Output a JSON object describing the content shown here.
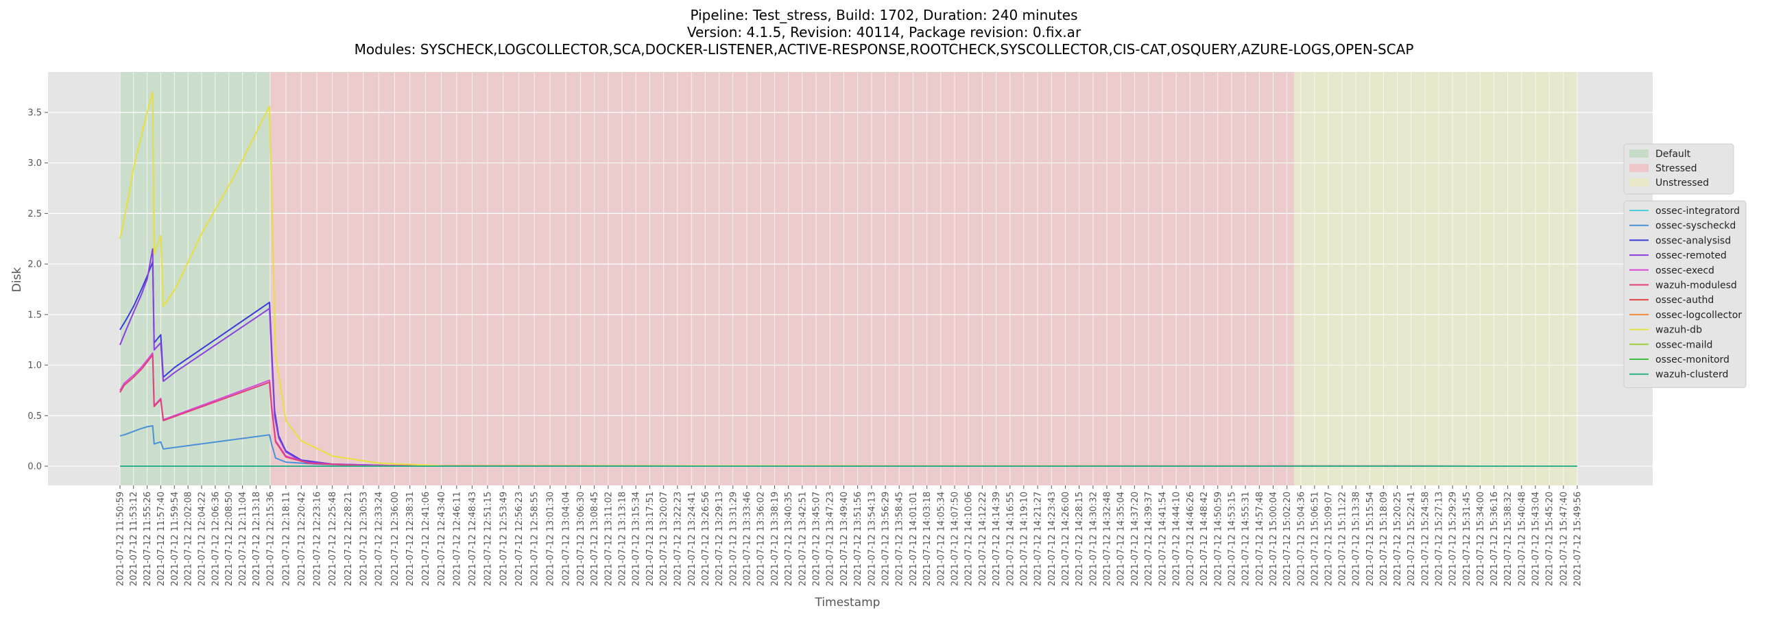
{
  "title_lines": [
    "Pipeline: Test_stress, Build: 1702, Duration: 240 minutes",
    "Version: 4.1.5, Revision: 40114, Package revision: 0.fix.ar",
    "Modules: SYSCHECK,LOGCOLLECTOR,SCA,DOCKER-LISTENER,ACTIVE-RESPONSE,ROOTCHECK,SYSCOLLECTOR,CIS-CAT,OSQUERY,AZURE-LOGS,OPEN-SCAP"
  ],
  "chart_data": {
    "type": "line",
    "xlabel": "Timestamp",
    "ylabel": "Disk",
    "ylim": [
      -0.19,
      3.9
    ],
    "yticks": [
      0.0,
      0.5,
      1.0,
      1.5,
      2.0,
      2.5,
      3.0,
      3.5
    ],
    "ytick_labels": [
      "0.0",
      "0.5",
      "1.0",
      "1.5",
      "2.0",
      "2.5",
      "3.0",
      "3.5"
    ],
    "grid": true,
    "legend_placement": "right",
    "x_ticks": [
      "2021-07-12 11:50:59",
      "2021-07-12 11:53:12",
      "2021-07-12 11:55:26",
      "2021-07-12 11:57:40",
      "2021-07-12 11:59:54",
      "2021-07-12 12:02:08",
      "2021-07-12 12:04:22",
      "2021-07-12 12:06:36",
      "2021-07-12 12:08:50",
      "2021-07-12 12:11:04",
      "2021-07-12 12:13:18",
      "2021-07-12 12:15:36",
      "2021-07-12 12:18:11",
      "2021-07-12 12:20:42",
      "2021-07-12 12:23:16",
      "2021-07-12 12:25:48",
      "2021-07-12 12:28:21",
      "2021-07-12 12:30:53",
      "2021-07-12 12:33:24",
      "2021-07-12 12:36:00",
      "2021-07-12 12:38:31",
      "2021-07-12 12:41:06",
      "2021-07-12 12:43:40",
      "2021-07-12 12:46:11",
      "2021-07-12 12:48:43",
      "2021-07-12 12:51:15",
      "2021-07-12 12:53:49",
      "2021-07-12 12:56:23",
      "2021-07-12 12:58:55",
      "2021-07-12 13:01:30",
      "2021-07-12 13:04:04",
      "2021-07-12 13:06:30",
      "2021-07-12 13:08:45",
      "2021-07-12 13:11:02",
      "2021-07-12 13:13:18",
      "2021-07-12 13:15:34",
      "2021-07-12 13:17:51",
      "2021-07-12 13:20:07",
      "2021-07-12 13:22:23",
      "2021-07-12 13:24:41",
      "2021-07-12 13:26:56",
      "2021-07-12 13:29:13",
      "2021-07-12 13:31:29",
      "2021-07-12 13:33:46",
      "2021-07-12 13:36:02",
      "2021-07-12 13:38:19",
      "2021-07-12 13:40:35",
      "2021-07-12 13:42:51",
      "2021-07-12 13:45:07",
      "2021-07-12 13:47:23",
      "2021-07-12 13:49:40",
      "2021-07-12 13:51:56",
      "2021-07-12 13:54:13",
      "2021-07-12 13:56:29",
      "2021-07-12 13:58:45",
      "2021-07-12 14:01:01",
      "2021-07-12 14:03:18",
      "2021-07-12 14:05:34",
      "2021-07-12 14:07:50",
      "2021-07-12 14:10:06",
      "2021-07-12 14:12:22",
      "2021-07-12 14:14:39",
      "2021-07-12 14:16:55",
      "2021-07-12 14:19:10",
      "2021-07-12 14:21:27",
      "2021-07-12 14:23:43",
      "2021-07-12 14:26:00",
      "2021-07-12 14:28:15",
      "2021-07-12 14:30:32",
      "2021-07-12 14:32:48",
      "2021-07-12 14:35:04",
      "2021-07-12 14:37:20",
      "2021-07-12 14:39:37",
      "2021-07-12 14:41:54",
      "2021-07-12 14:44:10",
      "2021-07-12 14:46:26",
      "2021-07-12 14:48:42",
      "2021-07-12 14:50:59",
      "2021-07-12 14:53:15",
      "2021-07-12 14:55:31",
      "2021-07-12 14:57:48",
      "2021-07-12 15:00:04",
      "2021-07-12 15:02:20",
      "2021-07-12 15:04:36",
      "2021-07-12 15:06:51",
      "2021-07-12 15:09:07",
      "2021-07-12 15:11:22",
      "2021-07-12 15:13:38",
      "2021-07-12 15:15:54",
      "2021-07-12 15:18:09",
      "2021-07-12 15:20:25",
      "2021-07-12 15:22:41",
      "2021-07-12 15:24:58",
      "2021-07-12 15:27:13",
      "2021-07-12 15:29:29",
      "2021-07-12 15:31:45",
      "2021-07-12 15:34:00",
      "2021-07-12 15:36:16",
      "2021-07-12 15:38:32",
      "2021-07-12 15:40:48",
      "2021-07-12 15:43:04",
      "2021-07-12 15:45:20",
      "2021-07-12 15:47:40",
      "2021-07-12 15:49:56"
    ],
    "phases": [
      {
        "name": "Default",
        "start": "2021-07-12 11:50:59",
        "end": "2021-07-12 12:15:36",
        "color": "#b2d5b2"
      },
      {
        "name": "Stressed",
        "start": "2021-07-12 12:15:36",
        "end": "2021-07-12 15:03:28",
        "color": "#f2b2b2"
      },
      {
        "name": "Unstressed",
        "start": "2021-07-12 15:03:28",
        "end": "2021-07-12 15:49:56",
        "color": "#eaeab2"
      }
    ],
    "series": [
      {
        "name": "ossec-integratord",
        "color": "#4dd0d8",
        "x": [
          "2021-07-12 11:50:59",
          "2021-07-12 15:49:56"
        ],
        "y": [
          0.0,
          0.0
        ]
      },
      {
        "name": "ossec-syscheckd",
        "color": "#4a90d9",
        "x": [
          "2021-07-12 11:50:59",
          "2021-07-12 11:51:40",
          "2021-07-12 11:53:00",
          "2021-07-12 11:54:20",
          "2021-07-12 11:55:26",
          "2021-07-12 11:56:20",
          "2021-07-12 11:56:35",
          "2021-07-12 11:57:40",
          "2021-07-12 11:58:05",
          "2021-07-12 12:15:30",
          "2021-07-12 12:15:50",
          "2021-07-12 12:16:30",
          "2021-07-12 12:18:11",
          "2021-07-12 12:23:16",
          "2021-07-12 12:33:24",
          "2021-07-12 15:49:56"
        ],
        "y": [
          0.3,
          0.31,
          0.34,
          0.37,
          0.39,
          0.4,
          0.22,
          0.24,
          0.17,
          0.31,
          0.22,
          0.08,
          0.04,
          0.02,
          0.005,
          0.0
        ]
      },
      {
        "name": "ossec-analysisd",
        "color": "#3b3bd9",
        "x": [
          "2021-07-12 11:50:59",
          "2021-07-12 11:52:00",
          "2021-07-12 11:53:12",
          "2021-07-12 11:54:30",
          "2021-07-12 11:55:26",
          "2021-07-12 11:56:20",
          "2021-07-12 11:56:35",
          "2021-07-12 11:57:40",
          "2021-07-12 11:58:05",
          "2021-07-12 12:00:00",
          "2021-07-12 12:15:30",
          "2021-07-12 12:15:50",
          "2021-07-12 12:16:20",
          "2021-07-12 12:17:00",
          "2021-07-12 12:18:11",
          "2021-07-12 12:20:42",
          "2021-07-12 12:25:48",
          "2021-07-12 12:36:00",
          "2021-07-12 15:49:56"
        ],
        "y": [
          1.35,
          1.45,
          1.58,
          1.75,
          1.88,
          2.02,
          1.22,
          1.3,
          0.88,
          0.98,
          1.62,
          1.18,
          0.55,
          0.3,
          0.15,
          0.06,
          0.02,
          0.005,
          0.0
        ]
      },
      {
        "name": "ossec-remoted",
        "color": "#8a3fe0",
        "x": [
          "2021-07-12 11:50:59",
          "2021-07-12 11:52:00",
          "2021-07-12 11:53:12",
          "2021-07-12 11:54:30",
          "2021-07-12 11:55:26",
          "2021-07-12 11:56:20",
          "2021-07-12 11:56:35",
          "2021-07-12 11:57:40",
          "2021-07-12 11:58:05",
          "2021-07-12 12:00:00",
          "2021-07-12 12:15:30",
          "2021-07-12 12:15:50",
          "2021-07-12 12:16:20",
          "2021-07-12 12:17:00",
          "2021-07-12 12:18:11",
          "2021-07-12 12:20:42",
          "2021-07-12 12:25:48",
          "2021-07-12 12:36:00",
          "2021-07-12 15:49:56"
        ],
        "y": [
          1.2,
          1.35,
          1.52,
          1.7,
          1.85,
          2.15,
          1.15,
          1.22,
          0.84,
          0.93,
          1.56,
          1.12,
          0.5,
          0.28,
          0.14,
          0.05,
          0.02,
          0.005,
          0.0
        ]
      },
      {
        "name": "ossec-execd",
        "color": "#d94ad9",
        "x": [
          "2021-07-12 11:50:59",
          "2021-07-12 11:51:40",
          "2021-07-12 11:53:12",
          "2021-07-12 11:54:30",
          "2021-07-12 11:55:26",
          "2021-07-12 11:56:20",
          "2021-07-12 11:56:35",
          "2021-07-12 11:57:40",
          "2021-07-12 11:58:05",
          "2021-07-12 12:15:30",
          "2021-07-12 12:15:50",
          "2021-07-12 12:16:30",
          "2021-07-12 12:18:11",
          "2021-07-12 12:22:00",
          "2021-07-12 12:30:53",
          "2021-07-12 15:49:56"
        ],
        "y": [
          0.75,
          0.82,
          0.9,
          0.98,
          1.05,
          1.12,
          0.6,
          0.67,
          0.46,
          0.85,
          0.6,
          0.25,
          0.1,
          0.03,
          0.005,
          0.0
        ]
      },
      {
        "name": "wazuh-modulesd",
        "color": "#e0407a",
        "x": [
          "2021-07-12 11:50:59",
          "2021-07-12 11:51:40",
          "2021-07-12 11:53:12",
          "2021-07-12 11:54:30",
          "2021-07-12 11:55:26",
          "2021-07-12 11:56:20",
          "2021-07-12 11:56:35",
          "2021-07-12 11:57:40",
          "2021-07-12 11:58:05",
          "2021-07-12 12:15:30",
          "2021-07-12 12:15:50",
          "2021-07-12 12:16:30",
          "2021-07-12 12:18:11",
          "2021-07-12 12:22:00",
          "2021-07-12 12:30:53",
          "2021-07-12 15:49:56"
        ],
        "y": [
          0.73,
          0.8,
          0.88,
          0.96,
          1.03,
          1.1,
          0.59,
          0.66,
          0.45,
          0.83,
          0.58,
          0.24,
          0.09,
          0.03,
          0.005,
          0.0
        ]
      },
      {
        "name": "ossec-authd",
        "color": "#e04040",
        "x": [
          "2021-07-12 11:50:59",
          "2021-07-12 15:49:56"
        ],
        "y": [
          0.0,
          0.0
        ]
      },
      {
        "name": "ossec-logcollector",
        "color": "#f08a3a",
        "x": [
          "2021-07-12 11:50:59",
          "2021-07-12 15:49:56"
        ],
        "y": [
          0.0,
          0.0
        ]
      },
      {
        "name": "wazuh-db",
        "color": "#e6e040",
        "x": [
          "2021-07-12 11:50:59",
          "2021-07-12 11:51:40",
          "2021-07-12 11:52:30",
          "2021-07-12 11:53:12",
          "2021-07-12 11:54:00",
          "2021-07-12 11:55:26",
          "2021-07-12 11:56:20",
          "2021-07-12 11:56:35",
          "2021-07-12 11:57:40",
          "2021-07-12 11:58:05",
          "2021-07-12 12:00:00",
          "2021-07-12 12:04:22",
          "2021-07-12 12:10:00",
          "2021-07-12 12:15:30",
          "2021-07-12 12:15:50",
          "2021-07-12 12:16:30",
          "2021-07-12 12:18:11",
          "2021-07-12 12:20:42",
          "2021-07-12 12:25:48",
          "2021-07-12 12:33:24",
          "2021-07-12 12:43:40",
          "2021-07-12 15:49:56"
        ],
        "y": [
          2.25,
          2.45,
          2.7,
          2.95,
          3.15,
          3.5,
          3.7,
          2.1,
          2.28,
          1.58,
          1.75,
          2.3,
          2.9,
          3.56,
          2.7,
          1.1,
          0.45,
          0.25,
          0.1,
          0.03,
          0.005,
          0.0
        ]
      },
      {
        "name": "ossec-maild",
        "color": "#9ad040",
        "x": [
          "2021-07-12 11:50:59",
          "2021-07-12 15:49:56"
        ],
        "y": [
          0.0,
          0.0
        ]
      },
      {
        "name": "ossec-monitord",
        "color": "#40c040",
        "x": [
          "2021-07-12 11:50:59",
          "2021-07-12 15:49:56"
        ],
        "y": [
          0.0,
          0.0
        ]
      },
      {
        "name": "wazuh-clusterd",
        "color": "#30b08a",
        "x": [
          "2021-07-12 11:50:59",
          "2021-07-12 15:49:56"
        ],
        "y": [
          0.0,
          0.0
        ]
      }
    ]
  }
}
